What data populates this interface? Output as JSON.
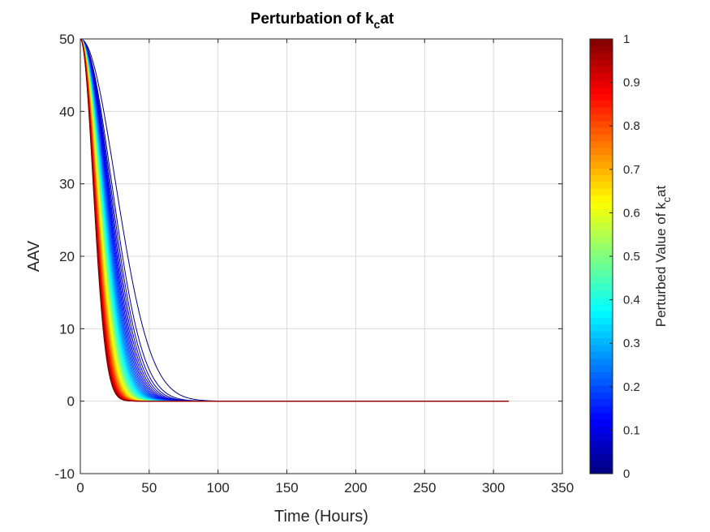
{
  "chart_data": {
    "type": "line",
    "title": {
      "pre": "Perturbation of k",
      "sub": "c",
      "post": "at"
    },
    "xlabel": "Time (Hours)",
    "ylabel": "AAV",
    "xlim": [
      0,
      350
    ],
    "ylim": [
      -10,
      50
    ],
    "xticks": [
      "0",
      "50",
      "100",
      "150",
      "200",
      "250",
      "300",
      "350"
    ],
    "yticks": [
      "-10",
      "0",
      "10",
      "20",
      "30",
      "40",
      "50"
    ],
    "grid": true,
    "t_end": 311,
    "initial_value": 50,
    "perturbed_kcat_range": [
      0,
      1
    ],
    "series_count": 50,
    "decay_time_range_hours": [
      13,
      36
    ],
    "colorbar": {
      "colormap": "jet",
      "range": [
        0,
        1
      ],
      "ticks": [
        "0",
        "0.1",
        "0.2",
        "0.3",
        "0.4",
        "0.5",
        "0.6",
        "0.7",
        "0.8",
        "0.9",
        "1"
      ],
      "label": {
        "pre": "Perturbed Value of k",
        "sub": "c",
        "post": "at"
      }
    }
  }
}
